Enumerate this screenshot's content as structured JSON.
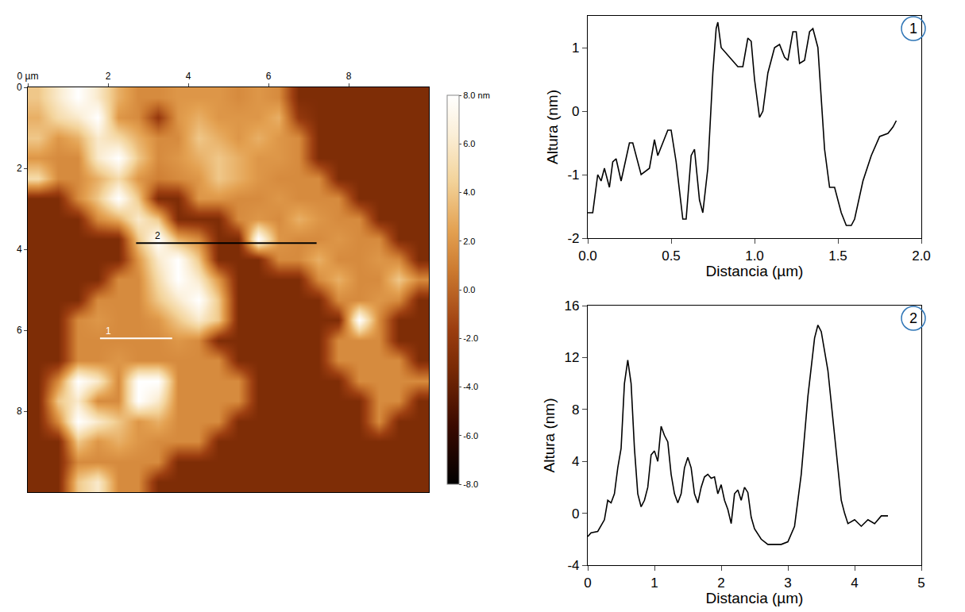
{
  "chart_data": [
    {
      "type": "heatmap",
      "x": [
        0.25,
        0.75,
        1.25,
        1.75,
        2.25,
        2.75,
        3.25,
        3.75,
        4.25,
        4.75,
        5.25,
        5.75,
        6.25,
        6.75,
        7.25,
        7.75,
        8.25,
        8.75,
        9.25,
        9.75
      ],
      "y": [
        0.25,
        0.75,
        1.25,
        1.75,
        2.25,
        2.75,
        3.25,
        3.75,
        4.25,
        4.75,
        5.25,
        5.75,
        6.25,
        6.75,
        7.25,
        7.75,
        8.25,
        8.75,
        9.25,
        9.75
      ],
      "z": [
        [
          4,
          6,
          8,
          6,
          3,
          1.5,
          1.5,
          2,
          2,
          2,
          1.5,
          2,
          1.5,
          -3,
          -3,
          -3,
          -3,
          -3,
          -3,
          -3
        ],
        [
          3,
          5,
          6,
          8,
          2,
          1.5,
          -2,
          2,
          3,
          2,
          2,
          2,
          3,
          -2,
          -3,
          -3,
          -3,
          -3,
          -3,
          -3
        ],
        [
          4,
          2,
          3,
          6,
          5,
          3,
          1.5,
          1.5,
          4,
          3,
          2,
          3,
          2,
          1.5,
          -3,
          -3,
          -3,
          -3,
          -3,
          -3
        ],
        [
          2,
          1.5,
          1.5,
          6,
          8,
          4,
          1.5,
          2,
          3,
          4,
          3,
          2,
          2,
          1.5,
          -3,
          -3,
          -3,
          -3,
          -3,
          -3
        ],
        [
          5,
          1.5,
          1.5,
          3,
          5,
          2,
          1,
          1.5,
          2,
          4,
          3,
          2,
          1.5,
          1.5,
          1.5,
          -3,
          -3,
          -3,
          -3,
          -3
        ],
        [
          -3,
          -3,
          1.5,
          4,
          8,
          4,
          -3,
          -3,
          2,
          2,
          1.5,
          1.5,
          2,
          1.5,
          1.5,
          1.5,
          -3,
          -3,
          -3,
          -3
        ],
        [
          -3,
          -3,
          -3,
          1.5,
          3,
          6,
          4,
          -3,
          -3,
          -3,
          1.5,
          2,
          1.5,
          3,
          2,
          1.5,
          1.5,
          -3,
          -3,
          -3
        ],
        [
          -3,
          -3,
          -3,
          -3,
          -3,
          4,
          8,
          3,
          1.5,
          -3,
          -3,
          8,
          2,
          1.5,
          1.5,
          2,
          1.5,
          1.5,
          -3,
          -3
        ],
        [
          -3,
          -3,
          -3,
          -3,
          -3,
          2,
          6,
          8,
          4,
          -3,
          -3,
          -3,
          1.5,
          1.5,
          3,
          1.5,
          1.5,
          2,
          1.5,
          -3
        ],
        [
          -3,
          -3,
          -3,
          -3,
          1.5,
          1.5,
          5,
          8,
          6,
          2,
          -3,
          -3,
          -3,
          -3,
          1.5,
          3,
          1.5,
          1.5,
          4,
          1.5
        ],
        [
          -3,
          -3,
          -3,
          1.5,
          1.5,
          1.5,
          4,
          6,
          8,
          4,
          -3,
          -3,
          -3,
          -3,
          -3,
          1.5,
          1.5,
          2,
          1.5,
          -3
        ],
        [
          -3,
          -3,
          1.5,
          2,
          1.5,
          1.5,
          2,
          4,
          6,
          4,
          -3,
          -3,
          -3,
          -3,
          -3,
          -3,
          8,
          1.5,
          -3,
          -3
        ],
        [
          -3,
          -3,
          1.5,
          1.5,
          1.5,
          1.5,
          1.5,
          2,
          1.5,
          -3,
          -3,
          -3,
          -3,
          -3,
          -3,
          1.5,
          1.5,
          1.5,
          -3,
          -3
        ],
        [
          -3,
          -3,
          1.5,
          1.5,
          2,
          1.5,
          1.5,
          1.5,
          1.5,
          1.5,
          -3,
          -3,
          -3,
          -3,
          -3,
          1.5,
          1.5,
          1.5,
          1.5,
          -3
        ],
        [
          -3,
          1.5,
          8,
          6,
          1.5,
          8,
          8,
          1.5,
          1.5,
          1.5,
          1.5,
          -3,
          -3,
          -3,
          -3,
          -3,
          1.5,
          1.5,
          1.5,
          1.5
        ],
        [
          -3,
          4,
          6,
          1.5,
          1.5,
          8,
          6,
          1.5,
          1.5,
          1.5,
          1.5,
          -3,
          -3,
          -3,
          -3,
          -3,
          -3,
          1.5,
          1.5,
          -3
        ],
        [
          -3,
          1.5,
          8,
          6,
          4,
          2,
          3,
          1.5,
          1.5,
          1.5,
          -3,
          -3,
          -3,
          -3,
          -3,
          -3,
          -3,
          1.5,
          -3,
          -3
        ],
        [
          -3,
          -3,
          4,
          2,
          3,
          2,
          1.5,
          1.5,
          1.5,
          -3,
          -3,
          -3,
          -3,
          -3,
          -3,
          -3,
          -3,
          -3,
          -3,
          -3
        ],
        [
          -3,
          -3,
          1.5,
          1.5,
          1.5,
          1.5,
          1.5,
          -3,
          -3,
          -3,
          -3,
          -3,
          -3,
          -3,
          -3,
          -3,
          -3,
          -3,
          -3,
          -3
        ],
        [
          -3,
          -3,
          4,
          6,
          1.5,
          1.5,
          -3,
          -3,
          -3,
          -3,
          -3,
          -3,
          -3,
          -3,
          -3,
          -3,
          -3,
          -3,
          -3,
          -3
        ]
      ],
      "xlim": [
        0,
        10
      ],
      "ylim": [
        10,
        0
      ],
      "xticks": [
        {
          "value": 0,
          "label": "0 µm"
        },
        2,
        4,
        6,
        8
      ],
      "yticks": [
        0,
        2,
        4,
        6,
        8
      ],
      "colorbar_range": [
        -8,
        8
      ],
      "colorbar_ticks": [
        {
          "value": -8,
          "label": "-8.0"
        },
        {
          "value": -6,
          "label": "-6.0"
        },
        {
          "value": -4,
          "label": "-4.0"
        },
        {
          "value": -2,
          "label": "-2.0"
        },
        {
          "value": 0,
          "label": "0.0"
        },
        {
          "value": 2,
          "label": "2.0"
        },
        {
          "value": 4,
          "label": "4.0"
        },
        {
          "value": 6,
          "label": "6.0"
        },
        {
          "value": 8,
          "label": "8.0 nm"
        }
      ],
      "profiles": [
        {
          "label": "1",
          "x": [
            1.8,
            3.6
          ],
          "y": [
            6.2,
            6.2
          ],
          "color": "#ffffff"
        },
        {
          "label": "2",
          "x": [
            2.7,
            7.2
          ],
          "y": [
            3.85,
            3.85
          ],
          "color": "#000000"
        }
      ]
    },
    {
      "type": "line",
      "title": "1",
      "x_label": "Distancia (µm)",
      "y_label": "Altura (nm)",
      "color": "#000000",
      "x": [
        0,
        0.03,
        0.06,
        0.08,
        0.1,
        0.13,
        0.15,
        0.17,
        0.2,
        0.25,
        0.27,
        0.32,
        0.37,
        0.4,
        0.42,
        0.45,
        0.48,
        0.5,
        0.53,
        0.57,
        0.59,
        0.62,
        0.64,
        0.67,
        0.69,
        0.72,
        0.75,
        0.77,
        0.78,
        0.8,
        0.85,
        0.9,
        0.93,
        0.96,
        0.98,
        1.0,
        1.03,
        1.05,
        1.08,
        1.12,
        1.15,
        1.18,
        1.2,
        1.23,
        1.25,
        1.27,
        1.3,
        1.33,
        1.35,
        1.38,
        1.42,
        1.45,
        1.48,
        1.52,
        1.55,
        1.58,
        1.6,
        1.65,
        1.7,
        1.75,
        1.8,
        1.83,
        1.85
      ],
      "values": [
        -1.6,
        -1.6,
        -1.0,
        -1.1,
        -0.9,
        -1.2,
        -0.8,
        -0.75,
        -1.1,
        -0.5,
        -0.5,
        -1.0,
        -0.9,
        -0.45,
        -0.7,
        -0.5,
        -0.3,
        -0.3,
        -0.8,
        -1.7,
        -1.7,
        -0.7,
        -0.6,
        -1.4,
        -1.6,
        -0.9,
        0.6,
        1.3,
        1.4,
        1.0,
        0.85,
        0.7,
        0.7,
        1.15,
        1.1,
        0.5,
        -0.1,
        0.0,
        0.6,
        1.0,
        1.05,
        0.85,
        0.8,
        1.25,
        1.25,
        0.75,
        0.8,
        1.25,
        1.3,
        1.0,
        -0.6,
        -1.2,
        -1.2,
        -1.6,
        -1.8,
        -1.8,
        -1.7,
        -1.1,
        -0.7,
        -0.4,
        -0.35,
        -0.25,
        -0.15
      ],
      "xlim": [
        0,
        2
      ],
      "ylim": [
        -2,
        1.5
      ],
      "xticks": [
        {
          "value": 0,
          "label": "0.0"
        },
        0.5,
        {
          "value": 1,
          "label": "1.0"
        },
        1.5,
        {
          "value": 2,
          "label": "2.0"
        }
      ],
      "yticks": [
        -2,
        -1,
        0,
        1
      ],
      "grid": false
    },
    {
      "type": "line",
      "title": "2",
      "x_label": "Distancia (µm)",
      "y_label": "Altura (nm)",
      "color": "#000000",
      "x": [
        0,
        0.05,
        0.15,
        0.25,
        0.3,
        0.35,
        0.4,
        0.45,
        0.5,
        0.55,
        0.6,
        0.65,
        0.7,
        0.75,
        0.8,
        0.85,
        0.9,
        0.95,
        1.0,
        1.05,
        1.1,
        1.15,
        1.2,
        1.25,
        1.3,
        1.35,
        1.4,
        1.45,
        1.5,
        1.55,
        1.6,
        1.65,
        1.7,
        1.75,
        1.8,
        1.85,
        1.9,
        1.95,
        2.0,
        2.05,
        2.1,
        2.15,
        2.2,
        2.25,
        2.3,
        2.35,
        2.4,
        2.45,
        2.5,
        2.6,
        2.7,
        2.8,
        2.9,
        3.0,
        3.1,
        3.2,
        3.3,
        3.4,
        3.45,
        3.5,
        3.6,
        3.7,
        3.8,
        3.85,
        3.9,
        4.0,
        4.1,
        4.2,
        4.3,
        4.4,
        4.5
      ],
      "values": [
        -1.8,
        -1.5,
        -1.4,
        -0.5,
        1.0,
        0.8,
        1.5,
        3.5,
        5.0,
        10.0,
        11.8,
        10.0,
        5.0,
        1.5,
        0.5,
        1.0,
        2.0,
        4.5,
        4.8,
        4.0,
        6.7,
        6.0,
        5.5,
        3.0,
        1.5,
        0.8,
        1.5,
        3.5,
        4.3,
        3.5,
        1.5,
        0.8,
        2.0,
        2.8,
        3.0,
        2.7,
        2.8,
        1.5,
        2.2,
        1.0,
        0.3,
        -0.8,
        1.5,
        1.8,
        1.0,
        2.0,
        1.6,
        -0.3,
        -1.2,
        -2.0,
        -2.4,
        -2.4,
        -2.4,
        -2.2,
        -1.0,
        3.0,
        9.0,
        13.5,
        14.5,
        14.0,
        11.0,
        6.0,
        1.0,
        0.0,
        -0.8,
        -0.5,
        -1.0,
        -0.5,
        -0.8,
        -0.2,
        -0.2
      ],
      "xlim": [
        0,
        5
      ],
      "ylim": [
        -4,
        16
      ],
      "xticks": [
        0,
        1,
        2,
        3,
        4,
        5
      ],
      "yticks": [
        -4,
        0,
        4,
        8,
        12,
        16
      ],
      "grid": false
    }
  ]
}
